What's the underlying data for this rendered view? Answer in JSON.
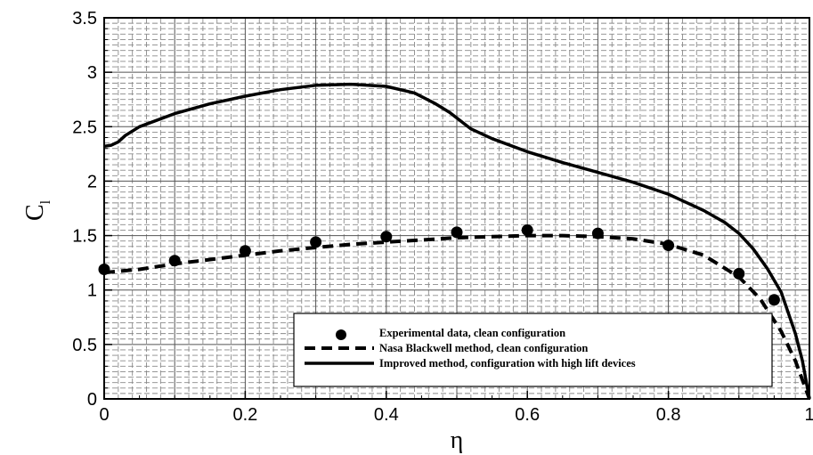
{
  "chart_data": {
    "type": "line",
    "xlabel": "η",
    "ylabel": "C",
    "ylabel_subscript": "l",
    "xlim": [
      0,
      1
    ],
    "ylim": [
      0,
      3.5
    ],
    "x_ticks": [
      "0",
      "0.2",
      "0.4",
      "0.6",
      "0.8",
      "1"
    ],
    "y_ticks": [
      "0",
      "0.5",
      "1",
      "1.5",
      "2",
      "2.5",
      "3",
      "3.5"
    ],
    "grid": true,
    "legend_position": "bottom-right",
    "series": [
      {
        "name": "Experimental data, clean configuration",
        "style": "markers",
        "color": "#000000",
        "x": [
          0.0,
          0.1,
          0.2,
          0.3,
          0.4,
          0.5,
          0.6,
          0.7,
          0.8,
          0.9,
          0.95
        ],
        "y": [
          1.19,
          1.27,
          1.36,
          1.44,
          1.49,
          1.53,
          1.55,
          1.52,
          1.41,
          1.15,
          0.91
        ]
      },
      {
        "name": "Nasa Blackwell method, clean configuration",
        "style": "dashed",
        "color": "#000000",
        "x": [
          0.0,
          0.05,
          0.1,
          0.15,
          0.2,
          0.25,
          0.3,
          0.35,
          0.4,
          0.45,
          0.5,
          0.55,
          0.6,
          0.65,
          0.7,
          0.75,
          0.8,
          0.85,
          0.9,
          0.93,
          0.96,
          0.98,
          1.0
        ],
        "y": [
          1.16,
          1.19,
          1.24,
          1.28,
          1.32,
          1.36,
          1.39,
          1.42,
          1.44,
          1.46,
          1.48,
          1.49,
          1.5,
          1.5,
          1.49,
          1.47,
          1.42,
          1.32,
          1.12,
          0.92,
          0.62,
          0.35,
          0.0
        ]
      },
      {
        "name": "Improved method, configuration with high lift devices",
        "style": "solid",
        "color": "#000000",
        "x": [
          0.0,
          0.01,
          0.02,
          0.03,
          0.05,
          0.1,
          0.15,
          0.2,
          0.25,
          0.3,
          0.35,
          0.4,
          0.44,
          0.47,
          0.49,
          0.5,
          0.52,
          0.55,
          0.6,
          0.65,
          0.7,
          0.75,
          0.8,
          0.85,
          0.88,
          0.9,
          0.92,
          0.94,
          0.96,
          0.98,
          0.99,
          1.0
        ],
        "y": [
          2.32,
          2.33,
          2.36,
          2.42,
          2.5,
          2.62,
          2.71,
          2.78,
          2.84,
          2.88,
          2.89,
          2.87,
          2.81,
          2.71,
          2.63,
          2.58,
          2.48,
          2.39,
          2.27,
          2.17,
          2.08,
          1.99,
          1.88,
          1.73,
          1.62,
          1.52,
          1.38,
          1.2,
          0.98,
          0.6,
          0.35,
          0.0
        ]
      }
    ]
  }
}
